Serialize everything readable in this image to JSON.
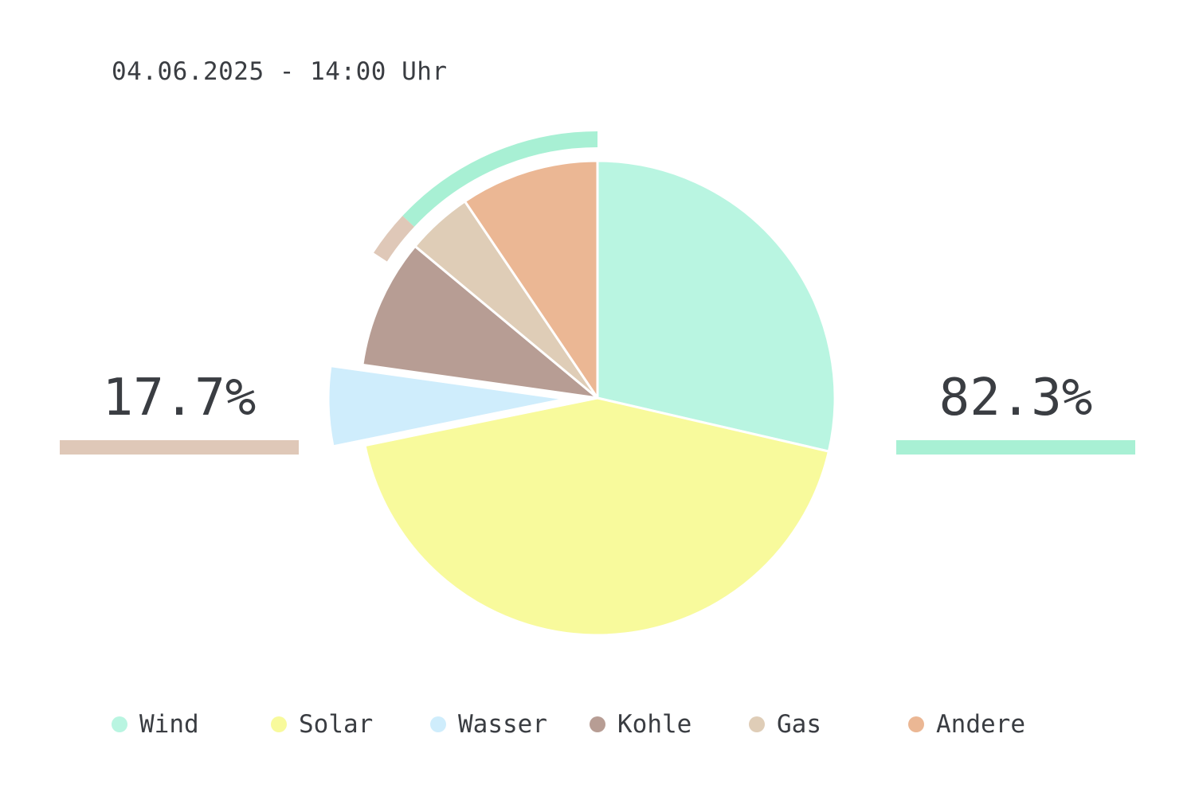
{
  "header": {
    "timestamp": "04.06.2025 - 14:00 Uhr"
  },
  "summary": {
    "fossil_label": "17.7%",
    "renewable_label": "82.3%",
    "fossil_share": 17.7,
    "renewable_share": 82.3,
    "fossil_color": "#dfc8b8",
    "renewable_color": "#a8f0d4"
  },
  "chart_data": {
    "type": "pie",
    "categories": [
      "Wind",
      "Solar",
      "Wasser",
      "Kohle",
      "Gas",
      "Andere"
    ],
    "values": [
      27.9,
      42.1,
      5.3,
      8.6,
      4.4,
      9.2
    ],
    "colors": [
      "#b9f5e1",
      "#f8fa9c",
      "#cfedfc",
      "#b79d94",
      "#dfcdb7",
      "#ebb794"
    ],
    "exploded": [
      "Wasser"
    ],
    "start_angle_deg": 0,
    "direction": "clockwise",
    "outer_ring": [
      {
        "name": "fossil",
        "value": 17.7,
        "color": "#dfc8b8"
      },
      {
        "name": "renewable",
        "value": 82.3,
        "color": "#a8f0d4"
      }
    ],
    "legend_position": "bottom"
  },
  "legend": {
    "items": [
      {
        "label": "Wind",
        "color": "#b9f5e1"
      },
      {
        "label": "Solar",
        "color": "#f8fa9c"
      },
      {
        "label": "Wasser",
        "color": "#cfedfc"
      },
      {
        "label": "Kohle",
        "color": "#b79d94"
      },
      {
        "label": "Gas",
        "color": "#dfcdb7"
      },
      {
        "label": "Andere",
        "color": "#ebb794"
      }
    ]
  }
}
